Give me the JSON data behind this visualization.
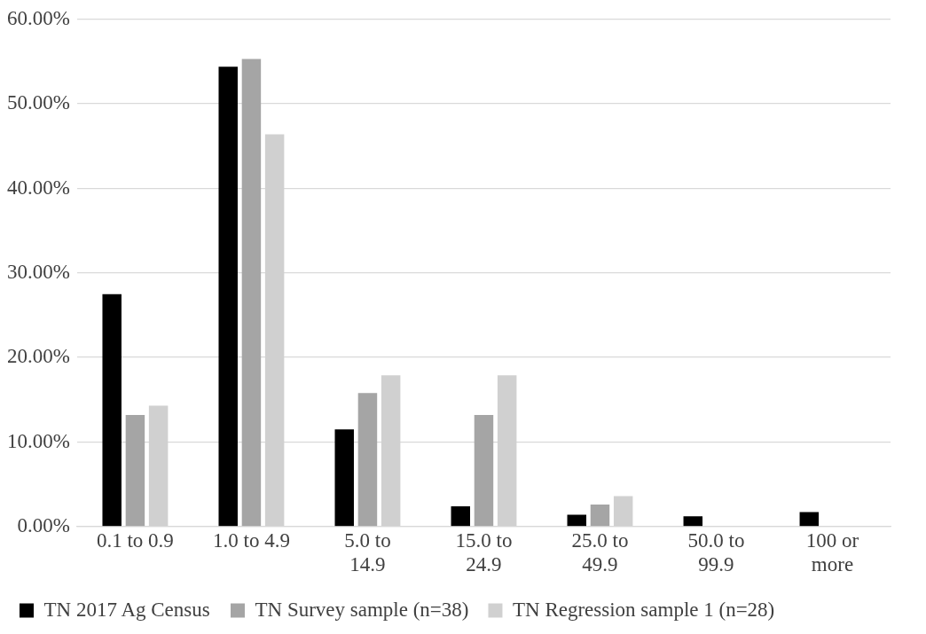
{
  "chart_data": {
    "type": "bar",
    "categories": [
      "0.1 to 0.9",
      "1.0 to 4.9",
      "5.0 to 14.9",
      "15.0 to 24.9",
      "25.0 to 49.9",
      "50.0 to 99.9",
      "100 or more"
    ],
    "series": [
      {
        "name": "TN 2017 Ag Census",
        "color": "#000000",
        "values": [
          27.5,
          54.4,
          11.5,
          2.4,
          1.4,
          1.2,
          1.7
        ]
      },
      {
        "name": "TN Survey sample (n=38)",
        "color": "#a5a5a5",
        "values": [
          13.2,
          55.3,
          15.8,
          13.2,
          2.6,
          0,
          0
        ]
      },
      {
        "name": "TN Regression sample 1 (n=28)",
        "color": "#d0d0d0",
        "values": [
          14.3,
          46.4,
          17.9,
          17.9,
          3.6,
          0,
          0
        ]
      }
    ],
    "ylim": [
      0,
      60
    ],
    "yticks": [
      {
        "value": 0,
        "label": "0.00%"
      },
      {
        "value": 10,
        "label": "10.00%"
      },
      {
        "value": 20,
        "label": "20.00%"
      },
      {
        "value": 30,
        "label": "30.00%"
      },
      {
        "value": 40,
        "label": "40.00%"
      },
      {
        "value": 50,
        "label": "50.00%"
      },
      {
        "value": 60,
        "label": "60.00%"
      }
    ],
    "grid": "y",
    "legend": "bottom"
  }
}
